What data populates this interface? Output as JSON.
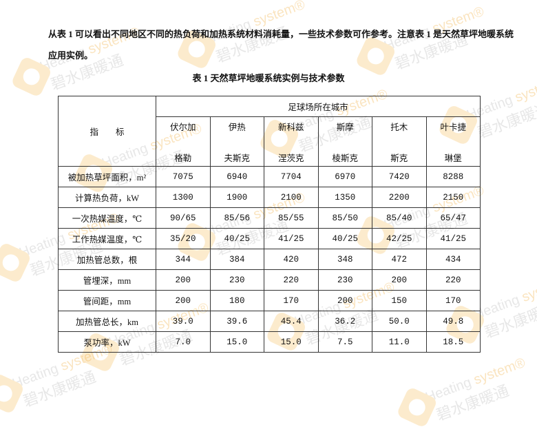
{
  "paragraph": "从表 1 可以看出不同地区不同的热负荷和加热系统材料消耗量，一些技术参数可作参考。注意表 1 是天然草坪地暖系统应用实例。",
  "table_caption": "表 1   天然草坪地暖系统实例与技术参数",
  "table": {
    "indicator_header": "指　　标",
    "group_header": "足球场所在城市",
    "cities": [
      {
        "line1": "伏尔加",
        "line2": "格勒"
      },
      {
        "line1": "伊热",
        "line2": "夫斯克"
      },
      {
        "line1": "新科兹",
        "line2": "涅茨克"
      },
      {
        "line1": "斯摩",
        "line2": "棱斯克"
      },
      {
        "line1": "托木",
        "line2": "斯克"
      },
      {
        "line1": "叶卡捷",
        "line2": "琳堡"
      }
    ],
    "rows": [
      {
        "label": "被加热草坪面积，m²",
        "values": [
          "7075",
          "6940",
          "7704",
          "6970",
          "7420",
          "8288"
        ]
      },
      {
        "label": "计算热负荷，kW",
        "values": [
          "1300",
          "1900",
          "2100",
          "1350",
          "2200",
          "2150"
        ]
      },
      {
        "label": "一次热媒温度，℃",
        "values": [
          "90/65",
          "85/56",
          "85/55",
          "85/50",
          "85/40",
          "65/47"
        ]
      },
      {
        "label": "工作热媒温度，℃",
        "values": [
          "35/20",
          "40/25",
          "41/25",
          "40/25",
          "42/25",
          "41/25"
        ]
      },
      {
        "label": "加热管总数，根",
        "values": [
          "344",
          "384",
          "420",
          "348",
          "472",
          "434"
        ]
      },
      {
        "label": "管埋深，mm",
        "values": [
          "200",
          "230",
          "220",
          "230",
          "200",
          "220"
        ]
      },
      {
        "label": "管间距，mm",
        "values": [
          "200",
          "180",
          "170",
          "200",
          "150",
          "170"
        ]
      },
      {
        "label": "加热管总长，km",
        "values": [
          "39.0",
          "39.6",
          "45.4",
          "36.2",
          "50.0",
          "49.8"
        ]
      },
      {
        "label": "泵功率，kW",
        "values": [
          "7.0",
          "15.0",
          "15.0",
          "7.5",
          "11.0",
          "18.5"
        ]
      }
    ]
  },
  "watermark": {
    "line1a": "Heating ",
    "line1b": "system®",
    "line2": "碧水康暖通",
    "color": "#f3b34a"
  }
}
